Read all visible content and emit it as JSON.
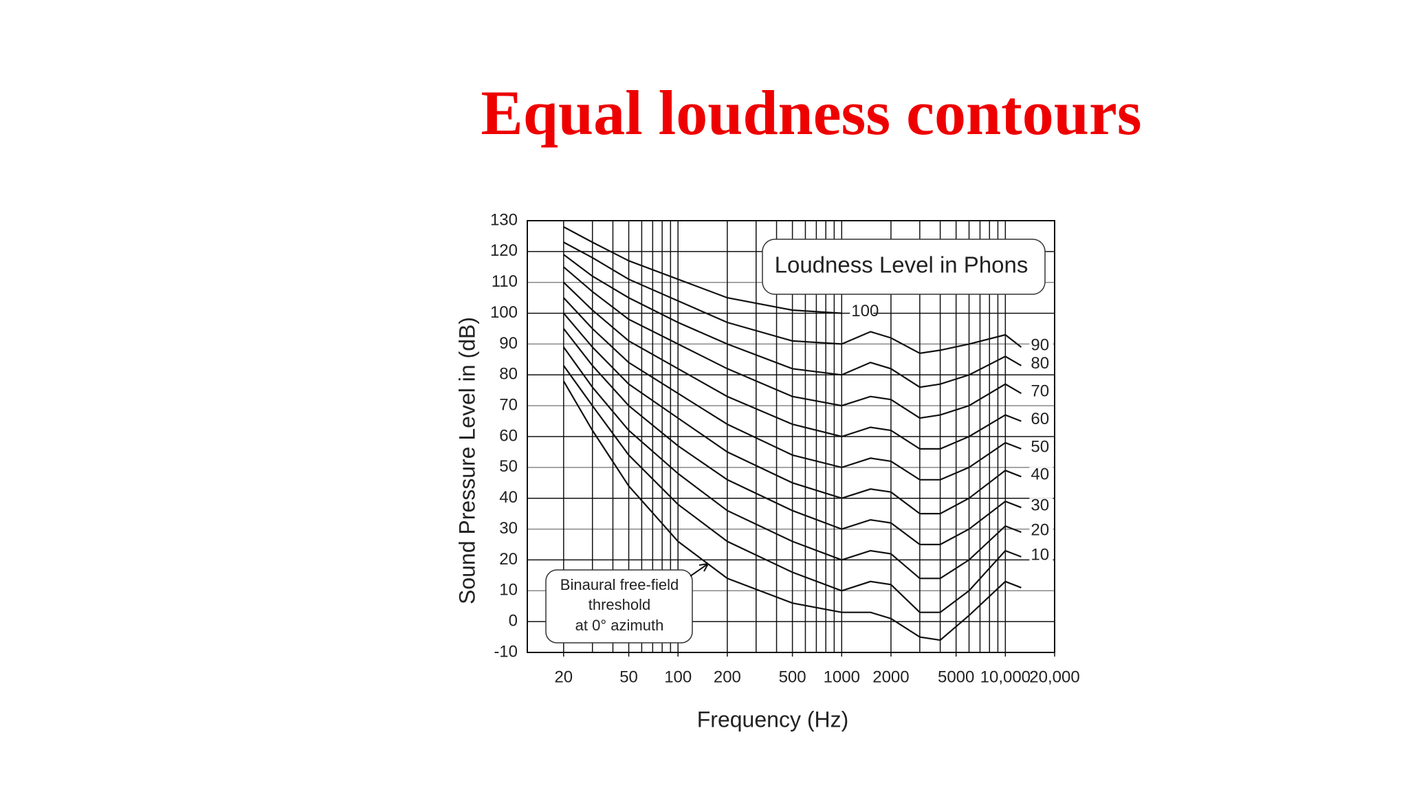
{
  "chart_data": {
    "type": "line",
    "title": "Equal loudness contours",
    "x_label": "Frequency (Hz)",
    "y_label": "Sound Pressure Level in (dB)",
    "legend_title": "Loudness Level in Phons",
    "annotation_lines": [
      "Binaural free-field",
      "threshold",
      "at 0° azimuth"
    ],
    "x_scale": "log",
    "xlim": [
      12,
      20000
    ],
    "ylim": [
      -10,
      130
    ],
    "xticks": [
      20,
      50,
      100,
      200,
      500,
      1000,
      2000,
      5000,
      {
        "value": 10000,
        "label": "10,000"
      },
      {
        "value": 20000,
        "label": "20,000"
      }
    ],
    "yticks": [
      -10,
      0,
      10,
      20,
      30,
      40,
      50,
      60,
      70,
      80,
      90,
      100,
      110,
      120,
      130
    ],
    "xgrid": [
      20,
      30,
      40,
      50,
      60,
      70,
      80,
      90,
      100,
      200,
      300,
      400,
      500,
      600,
      700,
      800,
      900,
      1000,
      2000,
      3000,
      4000,
      5000,
      6000,
      7000,
      8000,
      9000,
      10000
    ],
    "grid": true,
    "color": "#111111",
    "x": [
      20,
      30,
      50,
      100,
      200,
      500,
      1000,
      1500,
      2000,
      3000,
      4000,
      6000,
      10000,
      12500
    ],
    "series": [
      {
        "name": "100",
        "color": "#111111",
        "values": [
          128,
          123,
          117,
          111,
          105,
          101,
          100,
          null,
          null,
          null,
          null,
          null,
          null,
          null
        ]
      },
      {
        "name": "90",
        "color": "#111111",
        "values": [
          123,
          118,
          111,
          104,
          97,
          91,
          90,
          94,
          92,
          87,
          88,
          90,
          93,
          89
        ]
      },
      {
        "name": "80",
        "color": "#111111",
        "values": [
          119,
          112,
          105,
          97,
          90,
          82,
          80,
          84,
          82,
          76,
          77,
          80,
          86,
          83
        ]
      },
      {
        "name": "70",
        "color": "#111111",
        "values": [
          115,
          107,
          98,
          90,
          82,
          73,
          70,
          73,
          72,
          66,
          67,
          70,
          77,
          74
        ]
      },
      {
        "name": "60",
        "color": "#111111",
        "values": [
          110,
          101,
          91,
          82,
          73,
          64,
          60,
          63,
          62,
          56,
          56,
          60,
          67,
          65
        ]
      },
      {
        "name": "50",
        "color": "#111111",
        "values": [
          105,
          95,
          84,
          74,
          64,
          54,
          50,
          53,
          52,
          46,
          46,
          50,
          58,
          56
        ]
      },
      {
        "name": "40",
        "color": "#111111",
        "values": [
          100,
          89,
          77,
          66,
          55,
          45,
          40,
          43,
          42,
          35,
          35,
          40,
          49,
          47
        ]
      },
      {
        "name": "30",
        "color": "#111111",
        "values": [
          95,
          83,
          70,
          57,
          46,
          36,
          30,
          33,
          32,
          25,
          25,
          30,
          39,
          37
        ]
      },
      {
        "name": "20",
        "color": "#111111",
        "values": [
          89,
          76,
          62,
          48,
          36,
          26,
          20,
          23,
          22,
          14,
          14,
          20,
          31,
          29
        ]
      },
      {
        "name": "10",
        "color": "#111111",
        "values": [
          83,
          70,
          54,
          38,
          26,
          16,
          10,
          13,
          12,
          3,
          3,
          10,
          23,
          21
        ]
      },
      {
        "color": "#111111",
        "values": [
          78,
          62,
          44,
          26,
          14,
          6,
          3,
          3,
          1,
          -5,
          -6,
          2,
          13,
          11
        ]
      }
    ]
  }
}
